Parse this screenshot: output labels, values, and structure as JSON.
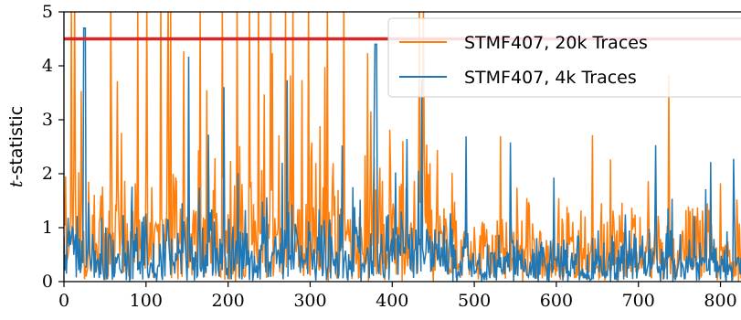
{
  "chart_data": {
    "type": "line",
    "title": "",
    "xlabel": "",
    "ylabel": "t-statistic",
    "ylabel_italic_part": "t",
    "ylabel_rest": "-statistic",
    "xlim": [
      0,
      825
    ],
    "ylim": [
      0,
      5
    ],
    "x_ticks": [
      "0",
      "100",
      "200",
      "300",
      "400",
      "500",
      "600",
      "700",
      "800"
    ],
    "y_ticks": [
      "0",
      "1",
      "2",
      "3",
      "4",
      "5"
    ],
    "grid": false,
    "legend_position": "top-right",
    "threshold": {
      "value": 4.5,
      "color": "#d62728"
    },
    "series": [
      {
        "name": "STMF407, 20k Traces",
        "color": "#ff7f0e",
        "seed": 20,
        "level": 1.45,
        "spread": 2.1
      },
      {
        "name": "STMF407, 4k Traces",
        "color": "#1f77b4",
        "seed": 4,
        "level": 0.95,
        "spread": 1.2
      }
    ],
    "notes_values": "Dense noisy traces (~825 samples each); values between 0 and ~5, orange exceeds 4.5 frequently in the first ~480 samples, blue peaks ~4.7 near x≈25 and ~4.4 near x≈380."
  }
}
